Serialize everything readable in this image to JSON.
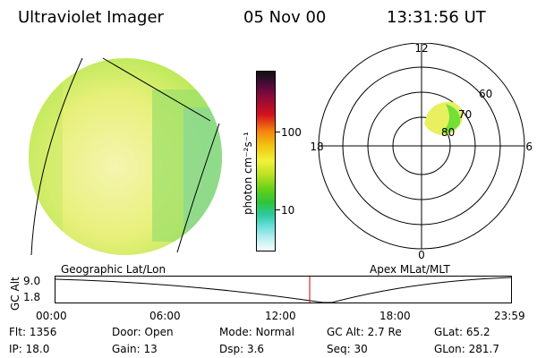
{
  "header": {
    "instrument": "Ultraviolet Imager",
    "date": "05 Nov 00",
    "time": "13:31:56 UT"
  },
  "colorbar": {
    "unit_label": "photon cm⁻²s⁻¹",
    "ticks": [
      "100",
      "10"
    ]
  },
  "polar_plot": {
    "mlt_labels": {
      "top": "12",
      "bottom": "0",
      "left": "18",
      "right": "6"
    },
    "lat_labels": [
      "60",
      "70",
      "80"
    ]
  },
  "image_panel": {
    "caption": "Geographic Lat/Lon"
  },
  "apex_caption": "Apex MLat/MLT",
  "altitude_plot": {
    "ylabel": "GC Alt",
    "y_ticks": [
      "9.0",
      "1.8"
    ],
    "x_ticks": [
      "00:00",
      "06:00",
      "12:00",
      "18:00",
      "23:59"
    ]
  },
  "status": {
    "row1": [
      {
        "key": "Flt:",
        "value": "1356"
      },
      {
        "key": "Door:",
        "value": "Open"
      },
      {
        "key": "Mode:",
        "value": "Normal"
      },
      {
        "key": "GC Alt:",
        "value": "2.7 Re"
      },
      {
        "key": "GLat:",
        "value": "65.2"
      }
    ],
    "row2": [
      {
        "key": "IP:",
        "value": "18.0"
      },
      {
        "key": "Gain:",
        "value": "13"
      },
      {
        "key": "Dsp:",
        "value": "3.6"
      },
      {
        "key": "Seq:",
        "value": "30"
      },
      {
        "key": "GLon:",
        "value": "281.7"
      }
    ]
  },
  "colors": {
    "background": "#ffffff",
    "marker": "#cc0000",
    "aurora_yellow": "#f2f28c",
    "aurora_green": "#66dd33"
  }
}
